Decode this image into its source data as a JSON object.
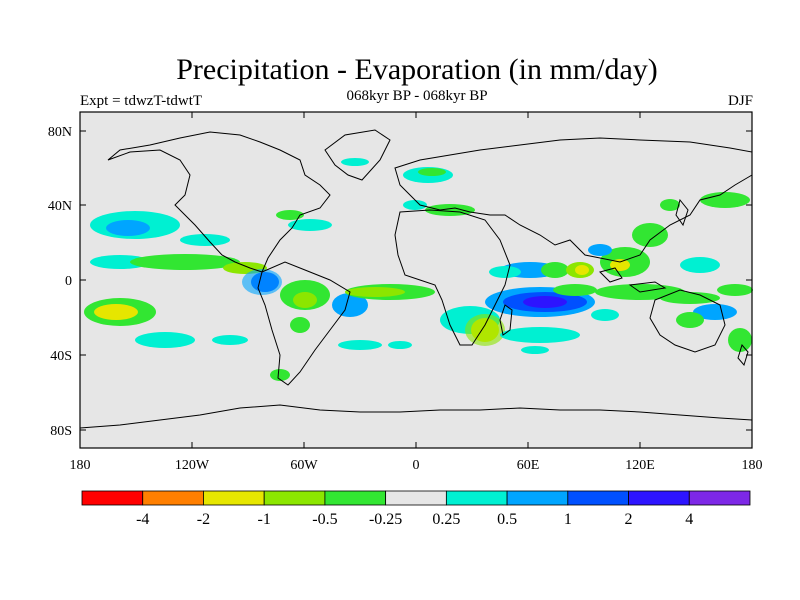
{
  "title": "Precipitation - Evaporation (in mm/day)",
  "subtitle": "068kyr BP - 068kyr BP",
  "left_string": "Expt = tdwzT-tdwtT",
  "right_string": "DJF",
  "map": {
    "lat_ticks": [
      "80N",
      "40N",
      "0",
      "40S",
      "80S"
    ],
    "lon_ticks": [
      "180",
      "120W",
      "60W",
      "0",
      "60E",
      "120E",
      "180"
    ],
    "background_color": "#e6e6e6",
    "coastline_color": "#000000"
  },
  "colorbar": {
    "colors": [
      "#ff0000",
      "#ff7f00",
      "#e6e600",
      "#8ce600",
      "#32e632",
      "#e6e6e6",
      "#00f0d2",
      "#00a5ff",
      "#0050ff",
      "#2d14ff",
      "#7d28e6"
    ],
    "labels": [
      "-4",
      "-2",
      "-1",
      "-0.5",
      "-0.25",
      "0.25",
      "0.5",
      "1",
      "2",
      "4"
    ]
  }
}
